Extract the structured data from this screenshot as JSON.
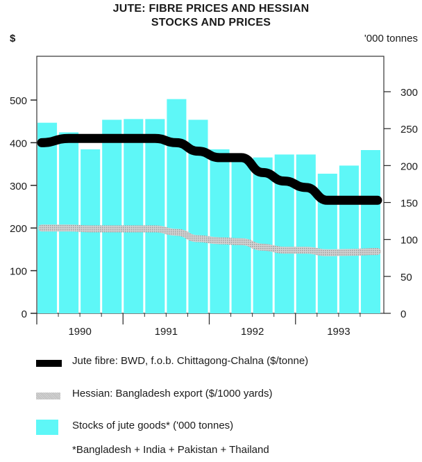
{
  "chart_data": {
    "type": "bar",
    "title": "JUTE:  FIBRE PRICES AND HESSIAN",
    "subtitle": "STOCKS AND PRICES",
    "left_axis": {
      "label": "$",
      "range": [
        0,
        600
      ],
      "ticks": [
        0,
        100,
        200,
        300,
        400,
        500
      ]
    },
    "right_axis": {
      "label": "'000 tonnes",
      "range": [
        0,
        350
      ],
      "ticks": [
        0,
        50,
        100,
        150,
        200,
        250,
        300
      ]
    },
    "x_periods": [
      "1990 Q1",
      "1990 Q2",
      "1990 Q3",
      "1990 Q4",
      "1991 Q1",
      "1991 Q2",
      "1991 Q3",
      "1991 Q4",
      "1992 Q1",
      "1992 Q2",
      "1992 Q3",
      "1992 Q4",
      "1993 Q1",
      "1993 Q2",
      "1993 Q3",
      "1993 Q4"
    ],
    "year_labels": [
      "1990",
      "1991",
      "1992",
      "1993"
    ],
    "grid": false,
    "legend_placement": "bottom",
    "series": [
      {
        "name": "Stocks of jute goods* ('000 tonnes)",
        "type": "bar",
        "axis": "right",
        "color": "#5ef7f7",
        "values": [
          258,
          245,
          222,
          262,
          263,
          263,
          290,
          262,
          222,
          209,
          211,
          215,
          215,
          189,
          200,
          221
        ]
      },
      {
        "name": "Jute fibre: BWD, f.o.b. Chittagong-Chalna ($/tonne)",
        "type": "line",
        "axis": "left",
        "color": "#000000",
        "values": [
          400,
          410,
          410,
          410,
          410,
          410,
          400,
          380,
          365,
          365,
          330,
          310,
          295,
          265,
          265,
          265
        ]
      },
      {
        "name": "Hessian: Bangladesh export ($/1000 yards)",
        "type": "line",
        "axis": "left",
        "color": "#c8c8c8",
        "values": [
          200,
          200,
          198,
          198,
          198,
          198,
          190,
          175,
          170,
          168,
          155,
          148,
          148,
          142,
          143,
          145
        ]
      }
    ],
    "footnote": "*Bangladesh + India + Pakistan + Thailand"
  }
}
